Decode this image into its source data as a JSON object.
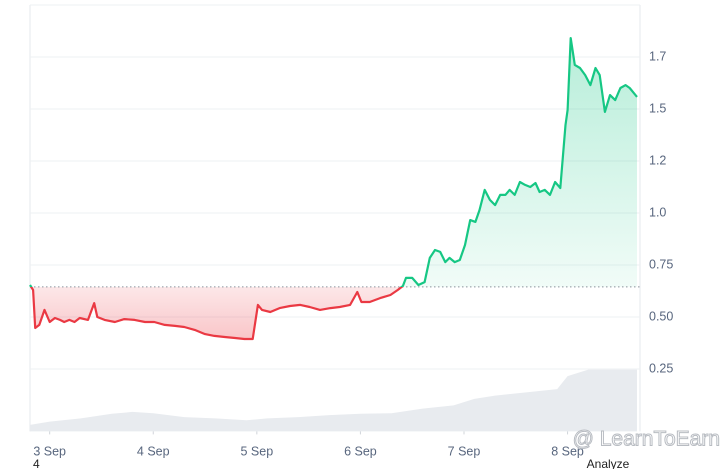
{
  "chart_data": {
    "type": "area-line",
    "x": [
      2.81,
      2.84,
      2.86,
      2.9,
      2.95,
      3.0,
      3.05,
      3.1,
      3.14,
      3.19,
      3.24,
      3.29,
      3.37,
      3.43,
      3.46,
      3.53,
      3.63,
      3.72,
      3.82,
      3.92,
      4.01,
      4.11,
      4.21,
      4.3,
      4.4,
      4.5,
      4.59,
      4.69,
      4.79,
      4.88,
      4.96,
      5.01,
      5.05,
      5.13,
      5.22,
      5.32,
      5.42,
      5.51,
      5.61,
      5.71,
      5.8,
      5.9,
      5.97,
      6.01,
      6.09,
      6.19,
      6.29,
      6.36,
      6.41,
      6.44,
      6.5,
      6.56,
      6.62,
      6.67,
      6.72,
      6.77,
      6.82,
      6.86,
      6.91,
      6.96,
      7.01,
      7.06,
      7.11,
      7.15,
      7.2,
      7.25,
      7.3,
      7.35,
      7.4,
      7.44,
      7.49,
      7.54,
      7.59,
      7.64,
      7.69,
      7.73,
      7.78,
      7.83,
      7.88,
      7.93,
      7.98,
      8.0,
      8.03,
      8.07,
      8.12,
      8.17,
      8.22,
      8.27,
      8.31,
      8.36,
      8.41,
      8.46,
      8.51,
      8.56,
      8.6,
      8.67
    ],
    "values": [
      0.654,
      0.63,
      0.447,
      0.462,
      0.534,
      0.476,
      0.495,
      0.486,
      0.476,
      0.486,
      0.476,
      0.495,
      0.486,
      0.567,
      0.5,
      0.486,
      0.476,
      0.49,
      0.486,
      0.476,
      0.476,
      0.462,
      0.457,
      0.452,
      0.438,
      0.418,
      0.409,
      0.404,
      0.399,
      0.394,
      0.394,
      0.558,
      0.534,
      0.524,
      0.543,
      0.553,
      0.558,
      0.548,
      0.534,
      0.543,
      0.548,
      0.558,
      0.62,
      0.572,
      0.572,
      0.591,
      0.606,
      0.63,
      0.649,
      0.688,
      0.688,
      0.654,
      0.668,
      0.784,
      0.822,
      0.813,
      0.764,
      0.784,
      0.764,
      0.774,
      0.846,
      0.966,
      0.957,
      1.014,
      1.111,
      1.063,
      1.038,
      1.087,
      1.087,
      1.111,
      1.087,
      1.149,
      1.135,
      1.125,
      1.144,
      1.101,
      1.111,
      1.087,
      1.149,
      1.12,
      1.423,
      1.495,
      1.841,
      1.712,
      1.697,
      1.663,
      1.615,
      1.697,
      1.663,
      1.486,
      1.567,
      1.543,
      1.601,
      1.615,
      1.601,
      1.558
    ],
    "baseline": 0.645,
    "color_up": "#16c784",
    "color_down": "#ea3943",
    "xlim": [
      2.81,
      8.68
    ],
    "ylim": [
      -0.05,
      2.0
    ],
    "xticks": [
      {
        "value": 3,
        "label": "3 Sep"
      },
      {
        "value": 4,
        "label": "4 Sep"
      },
      {
        "value": 5,
        "label": "5 Sep"
      },
      {
        "value": 6,
        "label": "6 Sep"
      },
      {
        "value": 7,
        "label": "7 Sep"
      },
      {
        "value": 8,
        "label": "8 Sep"
      }
    ],
    "yticks": [
      0.25,
      {
        "value": 0.5,
        "label": "0.50"
      },
      0.75,
      {
        "value": 1.0,
        "label": "1.0"
      },
      {
        "value": 1.25,
        "label": "1.2"
      },
      1.5,
      {
        "value": 1.75,
        "label": "1.7"
      }
    ],
    "grid": true,
    "volume": {
      "x": [
        2.81,
        3.0,
        3.3,
        3.6,
        3.8,
        4.0,
        4.3,
        4.6,
        4.9,
        5.1,
        5.4,
        5.7,
        6.0,
        6.3,
        6.6,
        6.9,
        7.1,
        7.3,
        7.6,
        7.9,
        8.0,
        8.2,
        8.4,
        8.67
      ],
      "values": [
        0.1,
        0.15,
        0.2,
        0.27,
        0.3,
        0.28,
        0.22,
        0.2,
        0.17,
        0.2,
        0.22,
        0.25,
        0.27,
        0.28,
        0.35,
        0.4,
        0.5,
        0.55,
        0.6,
        0.65,
        0.85,
        0.95,
        0.95,
        0.95
      ],
      "color": "#e8ebef",
      "lim": [
        0,
        1
      ]
    },
    "footer_left": "4",
    "footer_right": "Analyze",
    "watermark": "@ LearnToEarn"
  }
}
